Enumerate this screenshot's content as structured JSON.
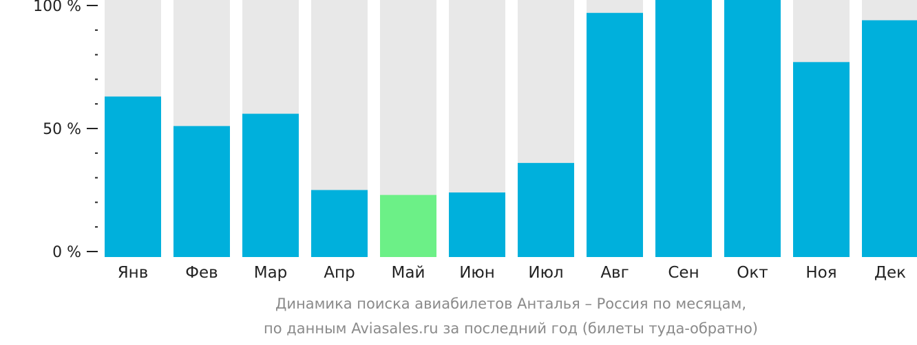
{
  "chart_data": {
    "type": "bar",
    "categories": [
      "Янв",
      "Фев",
      "Мар",
      "Апр",
      "Май",
      "Июн",
      "Июл",
      "Авг",
      "Сен",
      "Окт",
      "Ноя",
      "Дек"
    ],
    "values": [
      63,
      51,
      56,
      25,
      23,
      24,
      36,
      97,
      103,
      105,
      77,
      94
    ],
    "ylim": [
      0,
      100
    ],
    "ytick_labels": [
      {
        "value": 100,
        "label": "100 %"
      },
      {
        "value": 50,
        "label": "50 %"
      },
      {
        "value": 0,
        "label": "0 %"
      }
    ],
    "minor_tick_step": 10,
    "highlight_category": "Май",
    "colors": {
      "bar": "#00b0dc",
      "highlight": "#6cf087",
      "background": "#e8e8e8",
      "axis": "#222222"
    },
    "grid": false,
    "legend": "none"
  },
  "caption": {
    "line1": "Динамика поиска авиабилетов Анталья – Россия по месяцам,",
    "line2": "по данным Aviasales.ru за последний год (билеты туда-обратно)"
  }
}
